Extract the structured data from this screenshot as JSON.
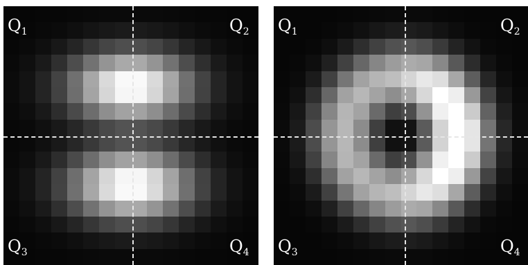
{
  "panels": [
    {
      "name": "left",
      "pattern": "two-lobes-vertical",
      "quadrants": [
        {
          "letter": "Q",
          "sub": "1"
        },
        {
          "letter": "Q",
          "sub": "2"
        },
        {
          "letter": "Q",
          "sub": "3"
        },
        {
          "letter": "Q",
          "sub": "4"
        }
      ]
    },
    {
      "name": "right",
      "pattern": "crescent-ring",
      "quadrants": [
        {
          "letter": "Q",
          "sub": "1"
        },
        {
          "letter": "Q",
          "sub": "2"
        },
        {
          "letter": "Q",
          "sub": "3"
        },
        {
          "letter": "Q",
          "sub": "4"
        }
      ]
    }
  ],
  "colors": {
    "background": "#000000",
    "guide": "#e6e6e6",
    "label": "#ffffff"
  }
}
